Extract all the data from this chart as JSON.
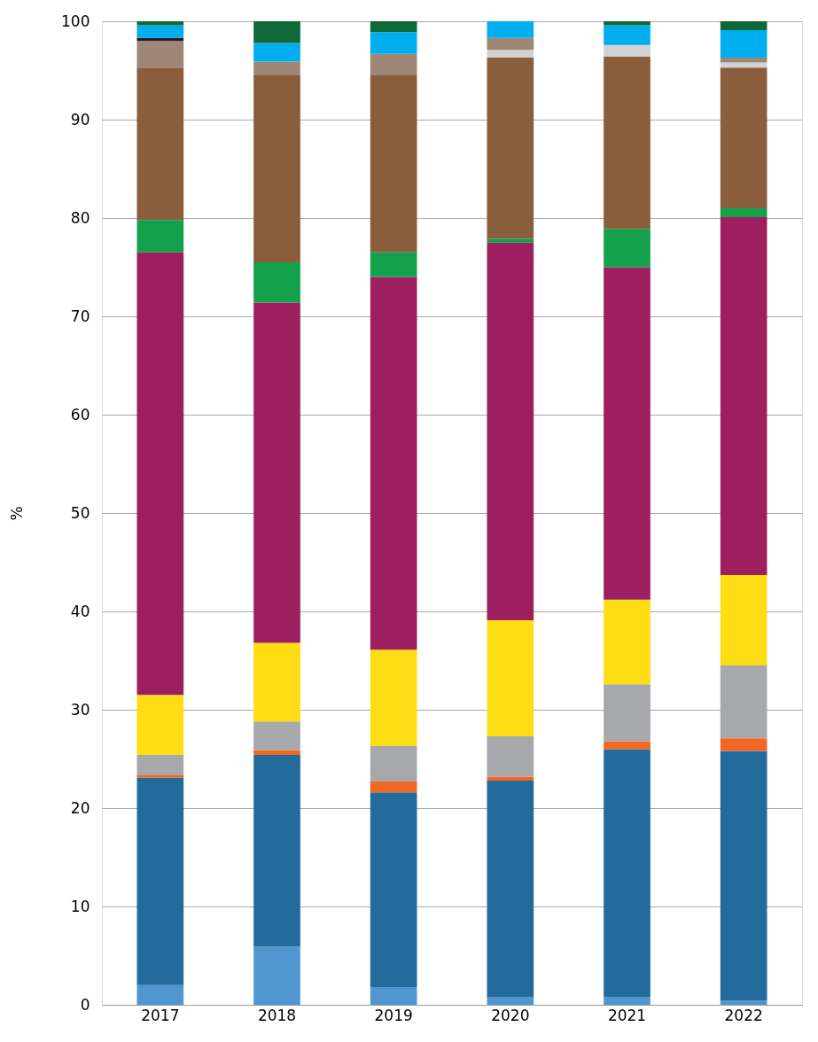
{
  "chart_data": {
    "type": "bar",
    "stacked": true,
    "ylabel": "%",
    "categories": [
      "2017",
      "2018",
      "2019",
      "2020",
      "2021",
      "2022"
    ],
    "ylim": [
      0,
      100
    ],
    "yticks": [
      0,
      10,
      20,
      30,
      40,
      50,
      60,
      70,
      80,
      90,
      100
    ],
    "grid": "y",
    "legend": false,
    "series": [
      {
        "color": "#5097d1",
        "values": [
          2.0,
          5.9,
          1.8,
          0.8,
          0.8,
          0.4
        ]
      },
      {
        "color": "#226b9c",
        "values": [
          21.1,
          19.5,
          19.8,
          22.0,
          25.2,
          25.4
        ]
      },
      {
        "color": "#f26722",
        "values": [
          0.3,
          0.5,
          1.1,
          0.4,
          0.8,
          1.3
        ]
      },
      {
        "color": "#a7a8ab",
        "values": [
          2.0,
          2.9,
          3.6,
          4.1,
          5.8,
          7.4
        ]
      },
      {
        "color": "#ffdd15",
        "values": [
          6.1,
          8.0,
          9.8,
          11.8,
          8.6,
          9.2
        ]
      },
      {
        "color": "#9d1f5f",
        "values": [
          45.0,
          34.6,
          37.9,
          38.4,
          33.8,
          36.4
        ]
      },
      {
        "color": "#12a04a",
        "values": [
          3.3,
          4.1,
          2.5,
          0.4,
          3.9,
          0.9
        ]
      },
      {
        "color": "#8a5d3b",
        "values": [
          15.5,
          19.0,
          18.0,
          18.4,
          17.5,
          14.3
        ]
      },
      {
        "color": "#d1d2d3",
        "values": [
          0,
          0,
          0,
          0.8,
          1.2,
          0.5
        ]
      },
      {
        "color": "#9e8777",
        "values": [
          2.7,
          1.4,
          2.2,
          1.2,
          0,
          0.5
        ]
      },
      {
        "color": "#231f20",
        "values": [
          0.3,
          0,
          0,
          0,
          0,
          0
        ]
      },
      {
        "color": "#00aeef",
        "values": [
          1.3,
          1.9,
          2.2,
          1.7,
          2.0,
          2.8
        ]
      },
      {
        "color": "#0e6838",
        "values": [
          0.4,
          2.2,
          1.1,
          0,
          0.4,
          0.9
        ]
      }
    ]
  }
}
